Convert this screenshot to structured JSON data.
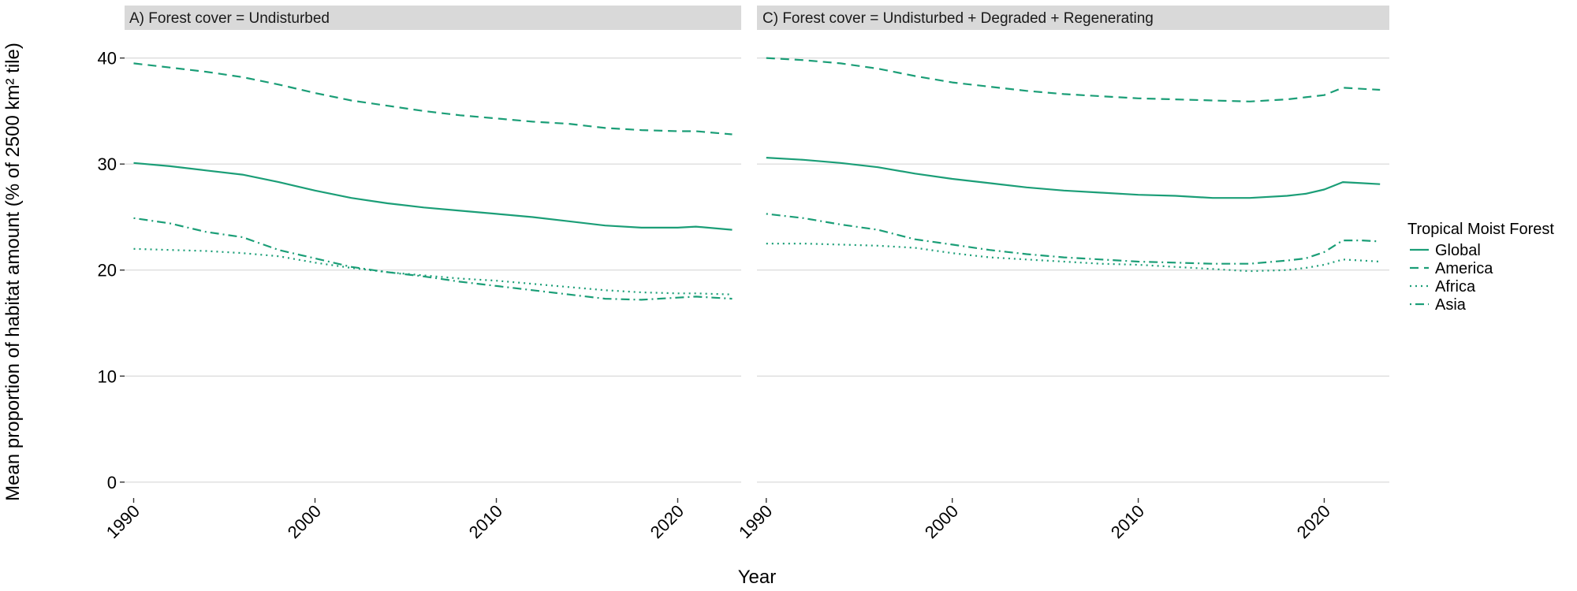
{
  "chart_data": {
    "type": "line",
    "xlabel": "Year",
    "ylabel": "Mean proportion of habitat amount (% of 2500 km² tile)",
    "xlim": [
      1989.5,
      2023.5
    ],
    "ylim": [
      -1.5,
      42.5
    ],
    "x_ticks": [
      1990,
      2000,
      2010,
      2020
    ],
    "y_ticks": [
      0,
      10,
      20,
      30,
      40
    ],
    "grid": true,
    "legend": {
      "title": "Tropical Moist Forest",
      "position": "right",
      "entries": [
        "Global",
        "America",
        "Africa",
        "Asia"
      ]
    },
    "colors": {
      "line": "#1b9e77",
      "strip": "#d9d9d9",
      "grid": "#dedede"
    },
    "panels": [
      {
        "strip": "A) Forest cover = Undisturbed",
        "series": [
          {
            "name": "Global",
            "linetype": "solid",
            "x": [
              1990,
              1992,
              1994,
              1996,
              1998,
              2000,
              2002,
              2004,
              2006,
              2008,
              2010,
              2012,
              2014,
              2016,
              2018,
              2020,
              2021,
              2023
            ],
            "y": [
              30.1,
              29.8,
              29.4,
              29.0,
              28.3,
              27.5,
              26.8,
              26.3,
              25.9,
              25.6,
              25.3,
              25.0,
              24.6,
              24.2,
              24.0,
              24.0,
              24.1,
              23.8
            ]
          },
          {
            "name": "America",
            "linetype": "dashed",
            "x": [
              1990,
              1992,
              1994,
              1996,
              1998,
              2000,
              2002,
              2004,
              2006,
              2008,
              2010,
              2012,
              2014,
              2016,
              2018,
              2020,
              2021,
              2023
            ],
            "y": [
              39.5,
              39.1,
              38.7,
              38.2,
              37.5,
              36.7,
              36.0,
              35.5,
              35.0,
              34.6,
              34.3,
              34.0,
              33.8,
              33.4,
              33.2,
              33.1,
              33.1,
              32.8
            ]
          },
          {
            "name": "Africa",
            "linetype": "dotted",
            "x": [
              1990,
              1992,
              1994,
              1996,
              1998,
              2000,
              2002,
              2004,
              2006,
              2008,
              2010,
              2012,
              2014,
              2016,
              2018,
              2020,
              2021,
              2023
            ],
            "y": [
              22.0,
              21.9,
              21.8,
              21.6,
              21.3,
              20.7,
              20.2,
              19.8,
              19.5,
              19.2,
              19.0,
              18.7,
              18.4,
              18.1,
              17.9,
              17.8,
              17.8,
              17.7
            ]
          },
          {
            "name": "Asia",
            "linetype": "dotdash",
            "x": [
              1990,
              1992,
              1994,
              1996,
              1998,
              2000,
              2002,
              2004,
              2006,
              2008,
              2010,
              2012,
              2014,
              2016,
              2018,
              2020,
              2021,
              2023
            ],
            "y": [
              24.9,
              24.4,
              23.6,
              23.1,
              21.9,
              21.1,
              20.3,
              19.8,
              19.4,
              18.9,
              18.5,
              18.1,
              17.7,
              17.3,
              17.2,
              17.4,
              17.5,
              17.3
            ]
          }
        ]
      },
      {
        "strip": "C) Forest cover = Undisturbed + Degraded + Regenerating",
        "series": [
          {
            "name": "Global",
            "linetype": "solid",
            "x": [
              1990,
              1992,
              1994,
              1996,
              1998,
              2000,
              2002,
              2004,
              2006,
              2008,
              2010,
              2012,
              2014,
              2016,
              2018,
              2019,
              2020,
              2021,
              2022,
              2023
            ],
            "y": [
              30.6,
              30.4,
              30.1,
              29.7,
              29.1,
              28.6,
              28.2,
              27.8,
              27.5,
              27.3,
              27.1,
              27.0,
              26.8,
              26.8,
              27.0,
              27.2,
              27.6,
              28.3,
              28.2,
              28.1
            ]
          },
          {
            "name": "America",
            "linetype": "dashed",
            "x": [
              1990,
              1992,
              1994,
              1996,
              1998,
              2000,
              2002,
              2004,
              2006,
              2008,
              2010,
              2012,
              2014,
              2016,
              2018,
              2019,
              2020,
              2021,
              2022,
              2023
            ],
            "y": [
              40.0,
              39.8,
              39.5,
              39.0,
              38.3,
              37.7,
              37.3,
              36.9,
              36.6,
              36.4,
              36.2,
              36.1,
              36.0,
              35.9,
              36.1,
              36.3,
              36.5,
              37.2,
              37.1,
              37.0
            ]
          },
          {
            "name": "Africa",
            "linetype": "dotted",
            "x": [
              1990,
              1992,
              1994,
              1996,
              1998,
              2000,
              2002,
              2004,
              2006,
              2008,
              2010,
              2012,
              2014,
              2016,
              2018,
              2019,
              2020,
              2021,
              2022,
              2023
            ],
            "y": [
              22.5,
              22.5,
              22.4,
              22.3,
              22.1,
              21.6,
              21.2,
              21.0,
              20.8,
              20.6,
              20.5,
              20.3,
              20.1,
              19.9,
              20.0,
              20.2,
              20.5,
              21.0,
              20.9,
              20.8
            ]
          },
          {
            "name": "Asia",
            "linetype": "dotdash",
            "x": [
              1990,
              1992,
              1994,
              1996,
              1998,
              2000,
              2002,
              2004,
              2006,
              2008,
              2010,
              2012,
              2014,
              2016,
              2018,
              2019,
              2020,
              2021,
              2022,
              2023
            ],
            "y": [
              25.3,
              24.9,
              24.3,
              23.8,
              22.9,
              22.4,
              21.9,
              21.5,
              21.2,
              21.0,
              20.8,
              20.7,
              20.6,
              20.6,
              20.9,
              21.1,
              21.7,
              22.8,
              22.8,
              22.7
            ]
          }
        ]
      }
    ]
  }
}
